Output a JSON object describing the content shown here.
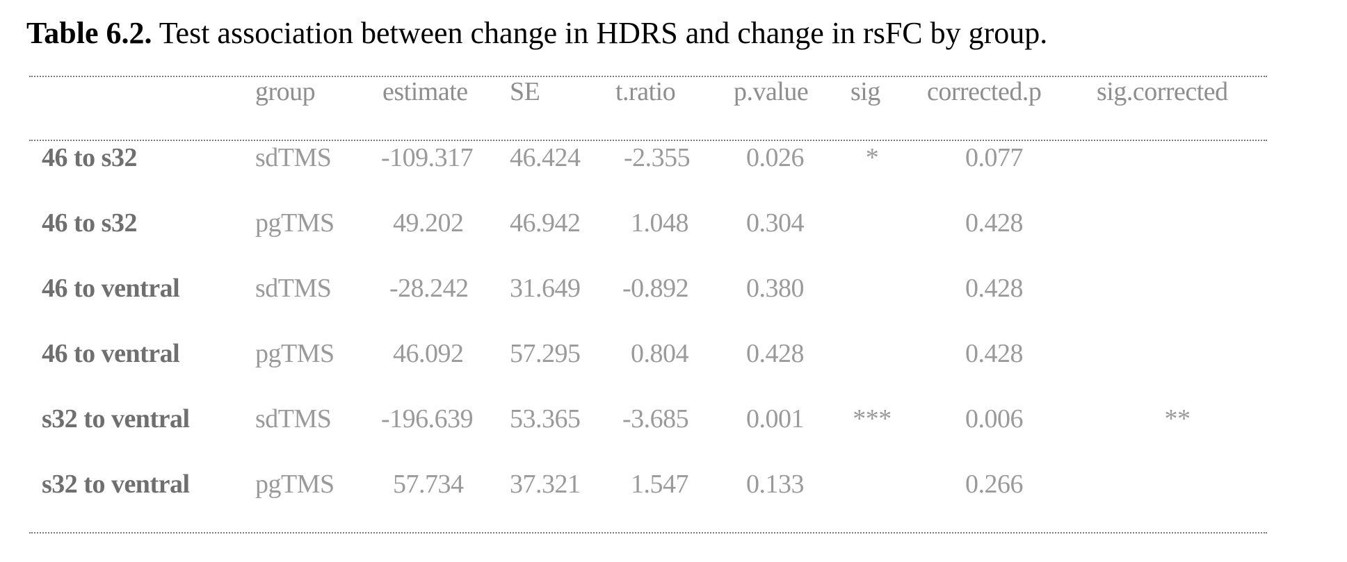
{
  "caption": {
    "label": "Table 6.2.",
    "text": " Test association between change in HDRS and change in rsFC by group."
  },
  "table": {
    "columns": [
      "group",
      "estimate",
      "SE",
      "t.ratio",
      "p.value",
      "sig",
      "corrected.p",
      "sig.corrected"
    ],
    "rows": [
      {
        "label": "46 to s32",
        "group": "sdTMS",
        "estimate": "-109.317",
        "se": "46.424",
        "t_ratio": "-2.355",
        "p_value": "0.026",
        "sig": "*",
        "corrected_p": "0.077",
        "sig_corrected": ""
      },
      {
        "label": "46 to s32",
        "group": "pgTMS",
        "estimate": "49.202",
        "se": "46.942",
        "t_ratio": "1.048",
        "p_value": "0.304",
        "sig": "",
        "corrected_p": "0.428",
        "sig_corrected": ""
      },
      {
        "label": "46 to ventral",
        "group": "sdTMS",
        "estimate": "-28.242",
        "se": "31.649",
        "t_ratio": "-0.892",
        "p_value": "0.380",
        "sig": "",
        "corrected_p": "0.428",
        "sig_corrected": ""
      },
      {
        "label": "46 to ventral",
        "group": "pgTMS",
        "estimate": "46.092",
        "se": "57.295",
        "t_ratio": "0.804",
        "p_value": "0.428",
        "sig": "",
        "corrected_p": "0.428",
        "sig_corrected": ""
      },
      {
        "label": "s32 to ventral",
        "group": "sdTMS",
        "estimate": "-196.639",
        "se": "53.365",
        "t_ratio": "-3.685",
        "p_value": "0.001",
        "sig": "***",
        "corrected_p": "0.006",
        "sig_corrected": "**"
      },
      {
        "label": "s32 to ventral",
        "group": "pgTMS",
        "estimate": "57.734",
        "se": "37.321",
        "t_ratio": "1.547",
        "p_value": "0.133",
        "sig": "",
        "corrected_p": "0.266",
        "sig_corrected": ""
      }
    ]
  }
}
